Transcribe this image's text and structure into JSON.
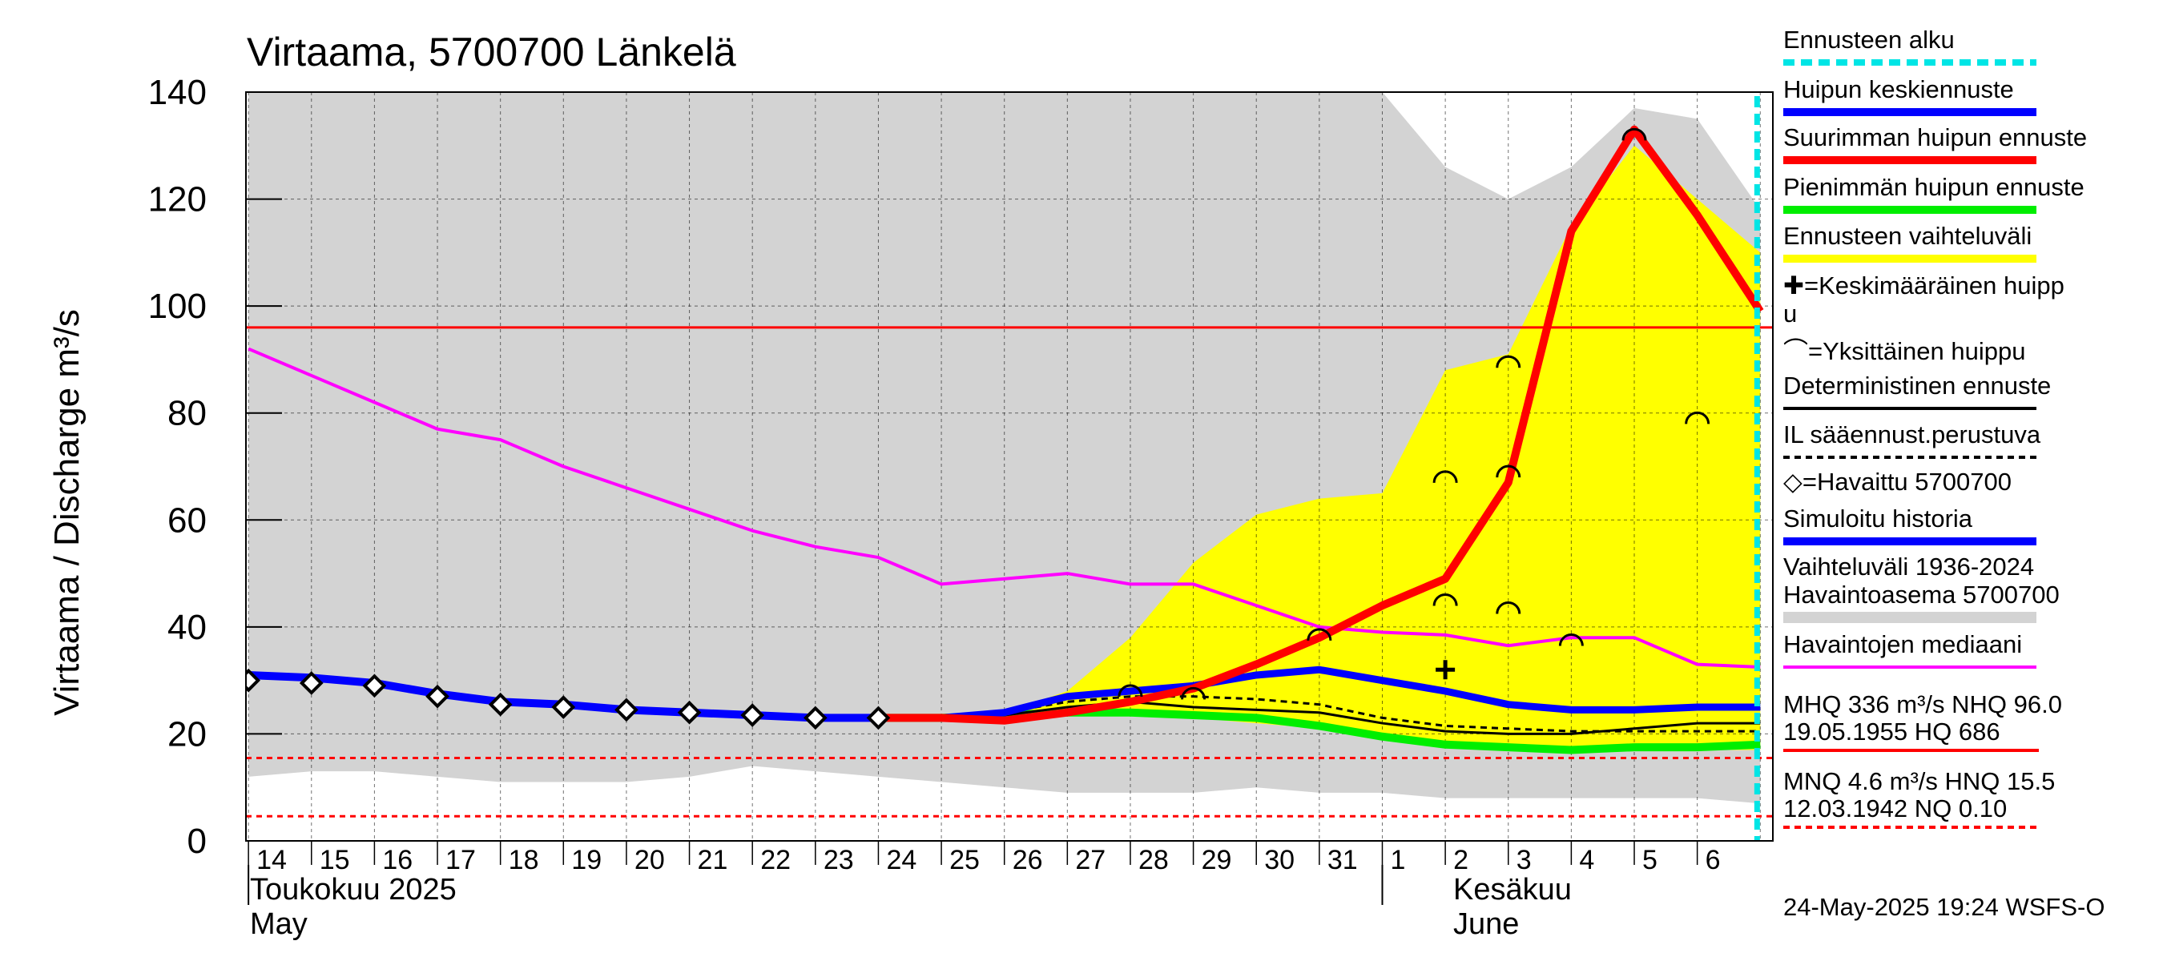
{
  "chart_data": {
    "type": "line",
    "title": "Virtaama, 5700700 Länkelä",
    "ylabel": "Virtaama / Discharge   m³/s",
    "ylim": [
      0,
      140
    ],
    "yticks": [
      0,
      20,
      40,
      60,
      80,
      100,
      120,
      140
    ],
    "x_day_labels": [
      "14",
      "15",
      "16",
      "17",
      "18",
      "19",
      "20",
      "21",
      "22",
      "23",
      "24",
      "25",
      "26",
      "27",
      "28",
      "29",
      "30",
      "31",
      "1",
      "2",
      "3",
      "4",
      "5",
      "6"
    ],
    "month_labels": {
      "may_fi": "Toukokuu  2025",
      "may_en": "May",
      "june_fi": "Kesäkuu",
      "june_en": "June"
    },
    "forecast_start_day": 23.95,
    "reference_lines": {
      "mhq_red_solid": 96,
      "hnq_red_dashed": 15.5,
      "mnq_red_dashed": 4.6
    },
    "historical_range_grey": {
      "x": [
        0,
        1,
        2,
        3,
        4,
        5,
        6,
        7,
        8,
        9,
        10,
        11,
        12,
        13,
        14,
        15,
        16,
        17,
        18,
        19,
        20,
        21,
        22,
        23,
        24
      ],
      "upper": [
        140,
        140,
        140,
        140,
        140,
        140,
        140,
        140,
        140,
        140,
        140,
        140,
        140,
        140,
        140,
        140,
        140,
        140,
        140,
        126,
        120,
        126,
        137,
        135,
        118
      ],
      "lower": [
        12,
        13,
        13,
        12,
        11,
        11,
        11,
        12,
        14,
        13,
        12,
        11,
        10,
        9,
        9,
        9,
        10,
        9,
        9,
        8,
        8,
        8,
        8,
        8,
        7
      ]
    },
    "forecast_range_yellow": {
      "x": [
        12,
        13,
        14,
        15,
        16,
        17,
        18,
        19,
        20,
        21,
        22,
        23,
        24
      ],
      "upper": [
        24,
        28,
        38,
        52,
        61,
        64,
        65,
        88,
        91,
        115,
        130,
        120,
        110
      ],
      "lower": [
        23,
        24,
        24,
        23,
        22,
        21,
        19,
        18,
        17,
        17,
        17,
        17,
        17
      ]
    },
    "series": [
      {
        "name": "Havaintojen mediaani",
        "color": "#ff00ff",
        "x": [
          0,
          1,
          2,
          3,
          4,
          5,
          6,
          7,
          8,
          9,
          10,
          11,
          12,
          13,
          14,
          15,
          16,
          17,
          18,
          19,
          20,
          21,
          22,
          23,
          24
        ],
        "values": [
          92,
          87,
          82,
          77,
          75,
          70,
          66,
          62,
          58,
          55,
          53,
          48,
          49,
          50,
          48,
          48,
          44,
          40,
          39,
          38.5,
          36.5,
          38,
          38,
          33,
          32.5
        ]
      },
      {
        "name": "Simuloitu historia",
        "color": "#0000ff",
        "x": [
          0,
          1,
          2,
          3,
          4,
          5,
          6,
          7,
          8,
          9,
          10
        ],
        "values": [
          31,
          30.5,
          29.5,
          27.5,
          26,
          25.5,
          24.5,
          24,
          23.5,
          23,
          23
        ]
      },
      {
        "name": "Suurimman huipun ennuste",
        "color": "#ff0000",
        "x": [
          10,
          11,
          12,
          13,
          14,
          15,
          16,
          17,
          18,
          19,
          20,
          21,
          22,
          23,
          24
        ],
        "values": [
          23,
          23,
          22.5,
          24,
          26,
          28.5,
          33,
          38,
          44,
          49,
          67,
          114,
          133,
          117,
          99
        ]
      },
      {
        "name": "Pienimmän huipun ennuste",
        "color": "#00ee00",
        "x": [
          10,
          11,
          12,
          13,
          14,
          15,
          16,
          17,
          18,
          19,
          20,
          21,
          22,
          23,
          24
        ],
        "values": [
          23,
          23,
          23.5,
          24,
          24,
          23.5,
          23,
          21.5,
          19.5,
          18,
          17.5,
          17,
          17.5,
          17.5,
          18
        ]
      },
      {
        "name": "Huipun keskiennuste",
        "color": "#0000ff",
        "x": [
          10,
          11,
          12,
          13,
          14,
          15,
          16,
          17,
          18,
          19,
          20,
          21,
          22,
          23,
          24
        ],
        "values": [
          23,
          23,
          24,
          27,
          28,
          29,
          31,
          32,
          30,
          28,
          25.5,
          24.5,
          24.5,
          25,
          25
        ]
      },
      {
        "name": "Deterministinen ennuste",
        "color": "#000000",
        "x": [
          10,
          11,
          12,
          13,
          14,
          15,
          16,
          17,
          18,
          19,
          20,
          21,
          22,
          23,
          24
        ],
        "values": [
          23,
          23,
          23.5,
          25,
          26,
          25,
          24.5,
          24,
          22,
          20.5,
          20,
          20,
          21,
          22,
          22
        ]
      },
      {
        "name": "IL sääennust.perustuva",
        "color": "#000000",
        "dashed": true,
        "x": [
          10,
          11,
          12,
          13,
          14,
          15,
          16,
          17,
          18,
          19,
          20,
          21,
          22,
          23,
          24
        ],
        "values": [
          23,
          23,
          24,
          26,
          27,
          27,
          26.5,
          25.5,
          23,
          21.5,
          21,
          20.5,
          20.5,
          20.5,
          20.5
        ]
      }
    ],
    "observed": {
      "name": "Havaittu 5700700",
      "x": [
        0,
        1,
        2,
        3,
        4,
        5,
        6,
        7,
        8,
        9,
        10
      ],
      "values": [
        30,
        29.5,
        29,
        27,
        25.5,
        25,
        24.5,
        24,
        23.5,
        23,
        23
      ]
    },
    "single_peaks": {
      "x": [
        14,
        15,
        17,
        19,
        19,
        20,
        20,
        20,
        22,
        23,
        21
      ],
      "values": [
        28,
        27.5,
        38.5,
        68,
        45,
        89.5,
        69,
        43.5,
        132,
        79,
        37.5
      ]
    },
    "mean_peak": {
      "x": [
        19
      ],
      "values": [
        32
      ]
    },
    "stat_lines": {
      "mhq": "MHQ  336 m³/s NHQ 96.0",
      "mhq_date": "19.05.1955 HQ  686",
      "mnq": "MNQ  4.6 m³/s HNQ 15.5",
      "mnq_date": "12.03.1942 NQ 0.10"
    }
  },
  "legend": [
    {
      "label": "Ennusteen alku",
      "color": "#00e5e5",
      "style": "dotted"
    },
    {
      "label": "Huipun keskiennuste",
      "color": "#0000ff",
      "style": "solid"
    },
    {
      "label": "Suurimman huipun ennuste",
      "color": "#ff0000",
      "style": "solid"
    },
    {
      "label": "Pienimmän huipun ennuste",
      "color": "#00ee00",
      "style": "solid"
    },
    {
      "label": "Ennusteen vaihteluväli",
      "color": "#ffff00",
      "style": "solid"
    },
    {
      "label": "✚=Keskimääräinen huipp",
      "label2": "u",
      "color": "",
      "style": "none"
    },
    {
      "label": "⌒=Yksittäinen huippu",
      "color": "",
      "style": "none"
    },
    {
      "label": "Deterministinen ennuste",
      "color": "#000000",
      "style": "thin"
    },
    {
      "label": "IL sääennust.perustuva",
      "color": "#000000",
      "style": "dashed"
    },
    {
      "label": "◇=Havaittu 5700700",
      "color": "",
      "style": "none"
    },
    {
      "label": "Simuloitu historia",
      "color": "#0000ff",
      "style": "solid"
    },
    {
      "label": "Vaihteluväli 1936-2024",
      "label2": " Havaintoasema 5700700",
      "color": "#d3d3d3",
      "style": "solid"
    },
    {
      "label": "Havaintojen mediaani",
      "color": "#ff00ff",
      "style": "thin"
    }
  ],
  "footer": {
    "timestamp": "24-May-2025 19:24 WSFS-O"
  },
  "colors": {
    "grey_range": "#d3d3d3",
    "yellow_range": "#ffff00",
    "grid": "#000000",
    "red": "#ff0000",
    "cyan": "#00e5e5"
  }
}
